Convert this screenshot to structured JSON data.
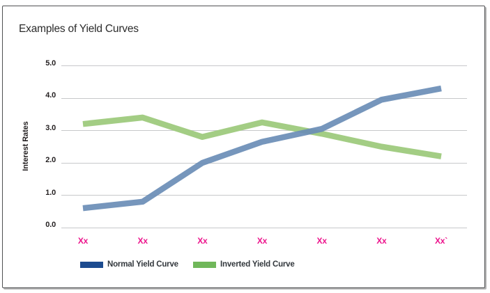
{
  "chart_data": {
    "type": "line",
    "title": "Examples of Yield Curves",
    "xlabel": "",
    "ylabel": "Interest Rates",
    "categories": [
      "Xx",
      "Xx",
      "Xx",
      "Xx",
      "Xx",
      "Xx",
      "Xx`"
    ],
    "x_label_color": "#ec148c",
    "grid_color": "#c7c8ca",
    "ylim": [
      0,
      5
    ],
    "yticks": [
      {
        "label": "0.0",
        "value": 0
      },
      {
        "label": "1.0",
        "value": 1
      },
      {
        "label": "2.0",
        "value": 2
      },
      {
        "label": "3.0",
        "value": 3
      },
      {
        "label": "4.0",
        "value": 4
      },
      {
        "label": "5.0",
        "value": 5
      }
    ],
    "legend_position": "bottom",
    "grid": true,
    "series": [
      {
        "name": "Normal Yield Curve",
        "line_color": "#6a8db6",
        "legend_color": "#1c4b8f",
        "values": [
          0.6,
          0.8,
          2.0,
          2.65,
          3.05,
          3.95,
          4.3
        ]
      },
      {
        "name": "Inverted Yield Curve",
        "line_color": "#a3cd84",
        "legend_color": "#70b75a",
        "values": [
          3.2,
          3.4,
          2.8,
          3.25,
          2.9,
          2.5,
          2.2
        ]
      }
    ]
  }
}
